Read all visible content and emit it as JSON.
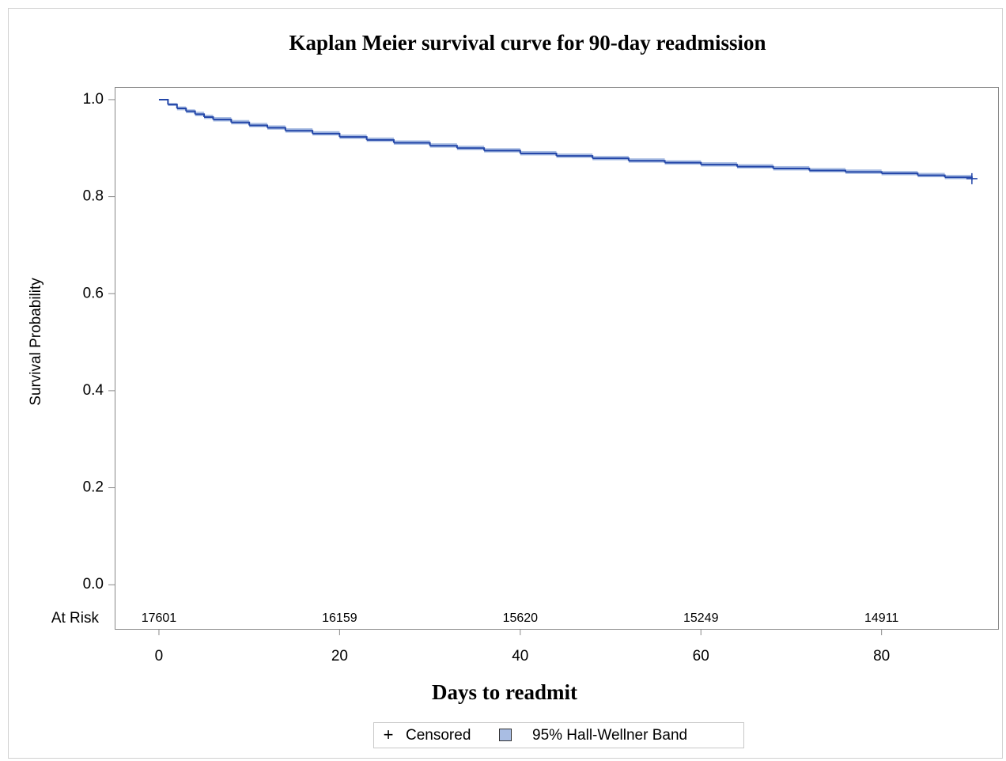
{
  "chart_data": {
    "type": "km",
    "title": "Kaplan Meier survival curve for 90-day readmission",
    "xlabel": "Days to readmit",
    "ylabel": "Survival Probability",
    "x": [
      0,
      1,
      2,
      3,
      4,
      5,
      6,
      8,
      10,
      12,
      14,
      17,
      20,
      23,
      26,
      30,
      33,
      36,
      40,
      44,
      48,
      52,
      56,
      60,
      64,
      68,
      72,
      76,
      80,
      84,
      87,
      90
    ],
    "values": [
      1.0,
      0.99,
      0.982,
      0.976,
      0.97,
      0.964,
      0.959,
      0.953,
      0.947,
      0.942,
      0.936,
      0.93,
      0.923,
      0.917,
      0.911,
      0.905,
      0.9,
      0.895,
      0.889,
      0.884,
      0.879,
      0.874,
      0.87,
      0.866,
      0.862,
      0.858,
      0.854,
      0.851,
      0.848,
      0.844,
      0.84,
      0.837
    ],
    "color": "#2346a8",
    "band": {
      "name": "95% Hall-Wellner Band",
      "color": "#a9bde3",
      "lower": [
        1.0,
        0.987,
        0.978,
        0.972,
        0.966,
        0.96,
        0.955,
        0.949,
        0.943,
        0.938,
        0.932,
        0.926,
        0.919,
        0.913,
        0.907,
        0.901,
        0.896,
        0.891,
        0.885,
        0.88,
        0.875,
        0.87,
        0.866,
        0.862,
        0.858,
        0.854,
        0.85,
        0.847,
        0.844,
        0.84,
        0.836,
        0.833
      ],
      "upper": [
        1.0,
        0.993,
        0.986,
        0.98,
        0.975,
        0.969,
        0.964,
        0.958,
        0.952,
        0.947,
        0.941,
        0.935,
        0.928,
        0.922,
        0.916,
        0.91,
        0.905,
        0.9,
        0.894,
        0.889,
        0.884,
        0.879,
        0.875,
        0.871,
        0.867,
        0.863,
        0.859,
        0.856,
        0.853,
        0.849,
        0.845,
        0.842
      ]
    },
    "censored": {
      "name": "Censored",
      "x": [
        90
      ],
      "values": [
        0.837
      ]
    },
    "at_risk": {
      "label": "At Risk",
      "x": [
        0,
        20,
        40,
        60,
        80
      ],
      "values": [
        17601,
        16159,
        15620,
        15249,
        14911
      ]
    },
    "xlim": [
      -4.9,
      92.9
    ],
    "xticks": [
      0,
      20,
      40,
      60,
      80
    ],
    "ylim": [
      -0.091,
      1.026
    ],
    "yticks": [
      {
        "value": 0,
        "label": "0.0"
      },
      0.2,
      0.4,
      0.6,
      0.8,
      {
        "value": 1,
        "label": "1.0"
      }
    ]
  }
}
